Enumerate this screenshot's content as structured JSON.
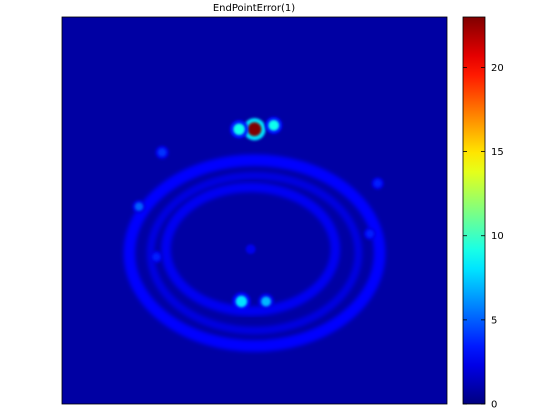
{
  "figure": {
    "title": "EndPointError(1)"
  },
  "chart_data": {
    "type": "heatmap",
    "title": "EndPointError(1)",
    "xlabel": "",
    "ylabel": "",
    "colormap": "jet",
    "background_value": 0.8,
    "clim": [
      0,
      23
    ],
    "colorbar": {
      "ticks": [
        0,
        5,
        10,
        15,
        20
      ],
      "tick_labels": [
        "0",
        "5",
        "10",
        "15",
        "20"
      ]
    },
    "features": [
      {
        "name": "outer-ring",
        "shape": "ellipse-ring",
        "cx": 0.5,
        "cy": 0.61,
        "rx": 0.325,
        "ry": 0.24,
        "width": 0.03,
        "value": 3.0
      },
      {
        "name": "inner-ring",
        "shape": "ellipse-ring",
        "cx": 0.49,
        "cy": 0.6,
        "rx": 0.22,
        "ry": 0.16,
        "width": 0.025,
        "value": 2.6
      },
      {
        "name": "middle-ring",
        "shape": "ellipse-ring",
        "cx": 0.5,
        "cy": 0.61,
        "rx": 0.27,
        "ry": 0.2,
        "width": 0.02,
        "value": 2.2
      },
      {
        "name": "hotspot-top-center",
        "shape": "spot",
        "cx": 0.5,
        "cy": 0.29,
        "r": 0.018,
        "value": 23
      },
      {
        "name": "hotspot-top-left",
        "shape": "spot",
        "cx": 0.46,
        "cy": 0.29,
        "r": 0.015,
        "value": 9
      },
      {
        "name": "hotspot-top-right",
        "shape": "spot",
        "cx": 0.55,
        "cy": 0.28,
        "r": 0.014,
        "value": 9
      },
      {
        "name": "hotspot-bottom-left",
        "shape": "spot",
        "cx": 0.466,
        "cy": 0.735,
        "r": 0.015,
        "value": 8
      },
      {
        "name": "hotspot-bottom-right",
        "shape": "spot",
        "cx": 0.53,
        "cy": 0.735,
        "r": 0.013,
        "value": 7
      },
      {
        "name": "spot-left-edge",
        "shape": "spot",
        "cx": 0.2,
        "cy": 0.49,
        "r": 0.011,
        "value": 5
      },
      {
        "name": "spot-left-top",
        "shape": "spot",
        "cx": 0.26,
        "cy": 0.35,
        "r": 0.011,
        "value": 4
      },
      {
        "name": "spot-right-top",
        "shape": "spot",
        "cx": 0.82,
        "cy": 0.43,
        "r": 0.01,
        "value": 3.5
      },
      {
        "name": "spot-right-edge",
        "shape": "spot",
        "cx": 0.8,
        "cy": 0.56,
        "r": 0.01,
        "value": 3.5
      },
      {
        "name": "spot-left-bottom",
        "shape": "spot",
        "cx": 0.245,
        "cy": 0.62,
        "r": 0.01,
        "value": 3.5
      },
      {
        "name": "spot-center",
        "shape": "spot",
        "cx": 0.49,
        "cy": 0.6,
        "r": 0.008,
        "value": 2.5
      }
    ]
  }
}
